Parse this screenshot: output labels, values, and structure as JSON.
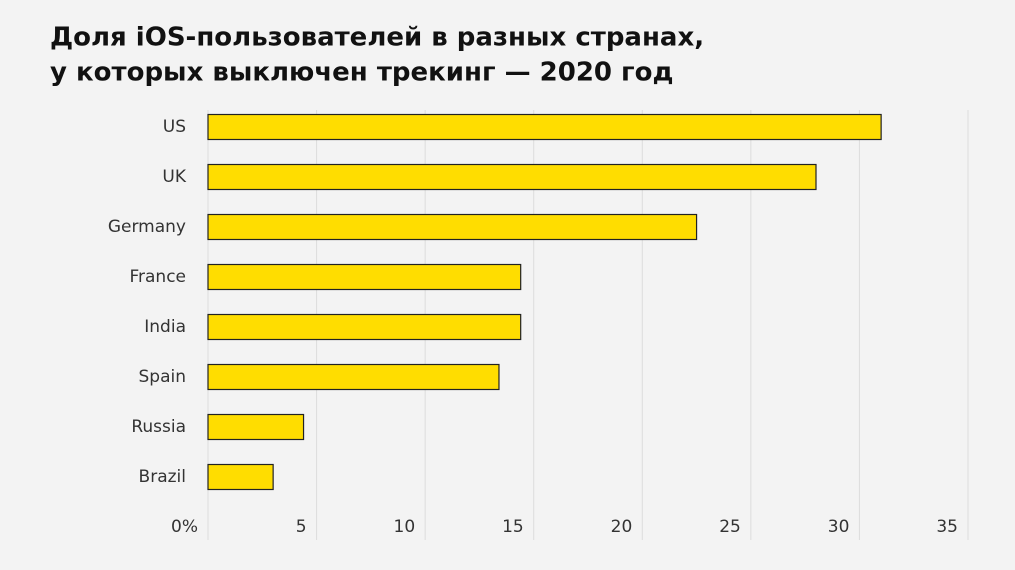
{
  "chart_data": {
    "type": "bar",
    "orientation": "horizontal",
    "title": [
      "Доля iOS-пользователей в разных странах,",
      "у которых выключен трекинг — 2020 год"
    ],
    "categories": [
      "US",
      "UK",
      "Germany",
      "France",
      "India",
      "Spain",
      "Russia",
      "Brazil"
    ],
    "values": [
      31,
      28,
      22.5,
      14.4,
      14.4,
      13.4,
      4.4,
      3
    ],
    "color": "#ffdd00",
    "xlim": [
      0,
      35
    ],
    "xticks": [
      {
        "value": 0,
        "label": "0%"
      },
      5,
      10,
      15,
      20,
      25,
      30,
      35
    ],
    "grid": true
  }
}
